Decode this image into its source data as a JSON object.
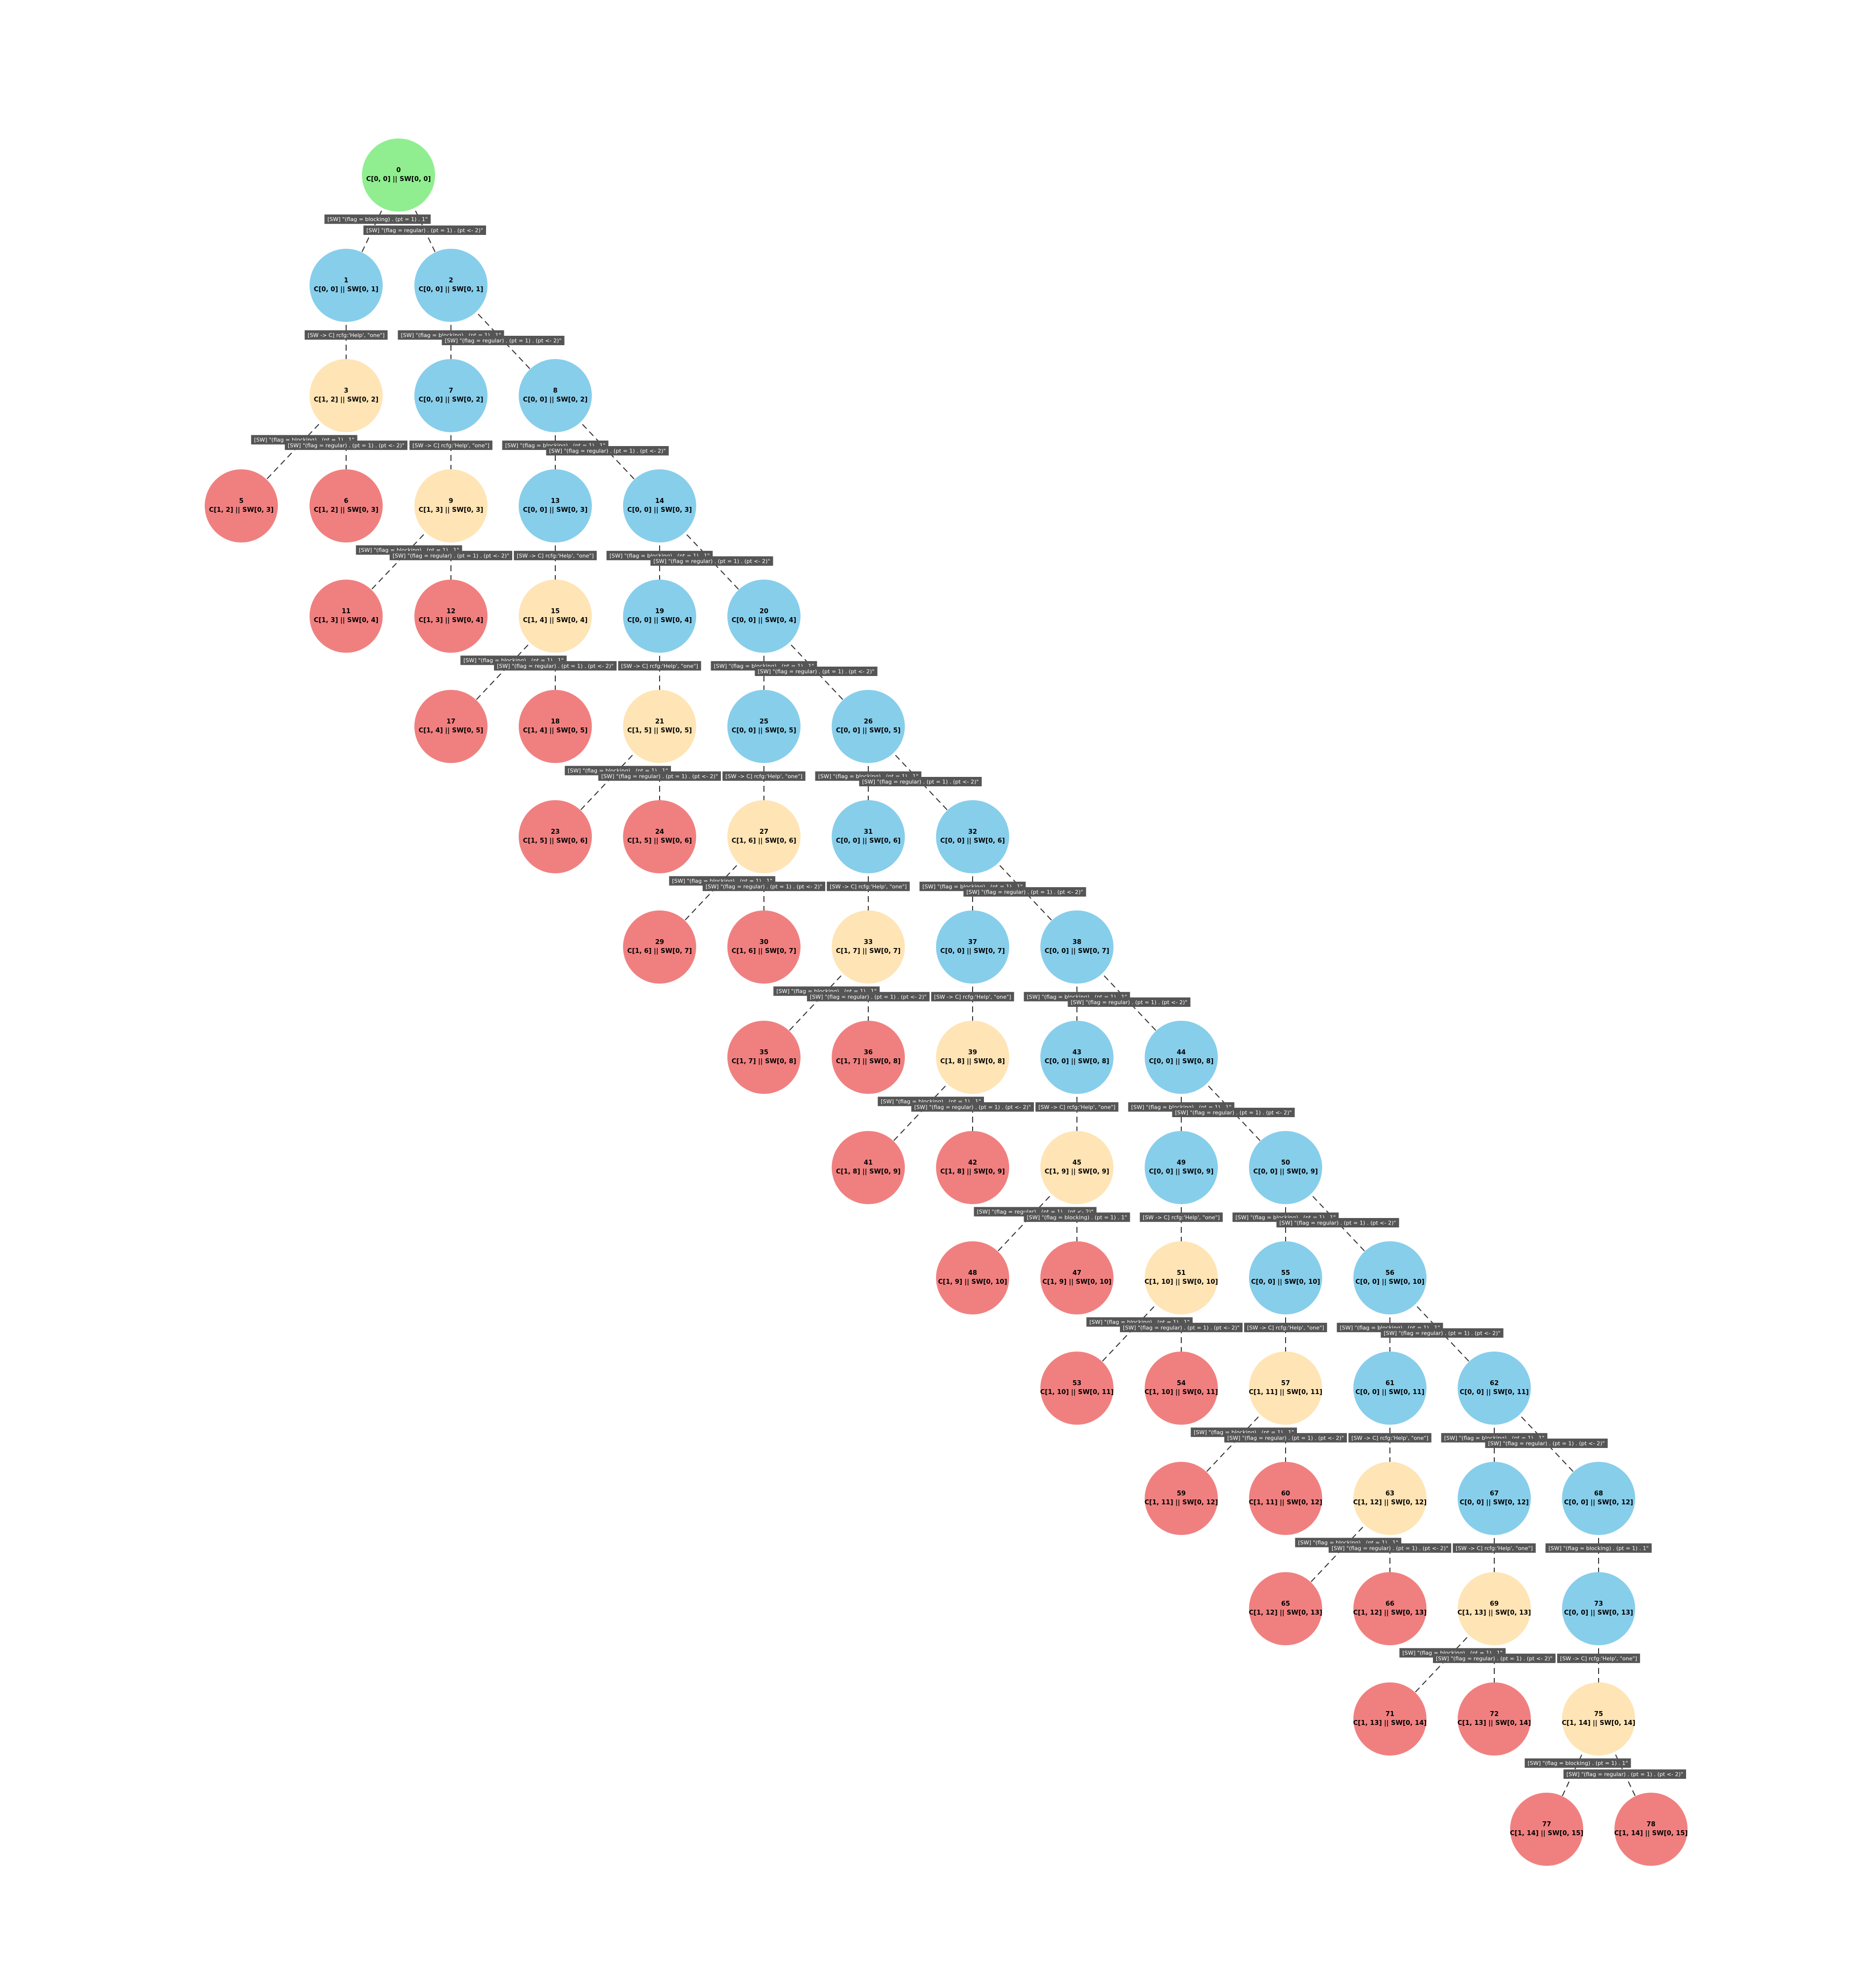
{
  "colors": {
    "root": "#90ee90",
    "blue": "#87ceeb",
    "yellow": "#ffe4b5",
    "red": "#f08080",
    "edge": "#333333",
    "label_bg": "#555555",
    "label_text": "#ffffff"
  },
  "nodes": [
    {
      "id": "0",
      "state": "C[0, 0] || SW[0, 0]",
      "kind": "root"
    },
    {
      "id": "1",
      "state": "C[0, 0] || SW[0, 1]",
      "kind": "blue"
    },
    {
      "id": "2",
      "state": "C[0, 0] || SW[0, 1]",
      "kind": "blue"
    },
    {
      "id": "3",
      "state": "C[1, 2] || SW[0, 2]",
      "kind": "yellow"
    },
    {
      "id": "7",
      "state": "C[0, 0] || SW[0, 2]",
      "kind": "blue"
    },
    {
      "id": "8",
      "state": "C[0, 0] || SW[0, 2]",
      "kind": "blue"
    },
    {
      "id": "5",
      "state": "C[1, 2] || SW[0, 3]",
      "kind": "red"
    },
    {
      "id": "6",
      "state": "C[1, 2] || SW[0, 3]",
      "kind": "red"
    },
    {
      "id": "9",
      "state": "C[1, 3] || SW[0, 3]",
      "kind": "yellow"
    },
    {
      "id": "13",
      "state": "C[0, 0] || SW[0, 3]",
      "kind": "blue"
    },
    {
      "id": "14",
      "state": "C[0, 0] || SW[0, 3]",
      "kind": "blue"
    },
    {
      "id": "11",
      "state": "C[1, 3] || SW[0, 4]",
      "kind": "red"
    },
    {
      "id": "12",
      "state": "C[1, 3] || SW[0, 4]",
      "kind": "red"
    },
    {
      "id": "15",
      "state": "C[1, 4] || SW[0, 4]",
      "kind": "yellow"
    },
    {
      "id": "19",
      "state": "C[0, 0] || SW[0, 4]",
      "kind": "blue"
    },
    {
      "id": "20",
      "state": "C[0, 0] || SW[0, 4]",
      "kind": "blue"
    },
    {
      "id": "17",
      "state": "C[1, 4] || SW[0, 5]",
      "kind": "red"
    },
    {
      "id": "18",
      "state": "C[1, 4] || SW[0, 5]",
      "kind": "red"
    },
    {
      "id": "21",
      "state": "C[1, 5] || SW[0, 5]",
      "kind": "yellow"
    },
    {
      "id": "25",
      "state": "C[0, 0] || SW[0, 5]",
      "kind": "blue"
    },
    {
      "id": "26",
      "state": "C[0, 0] || SW[0, 5]",
      "kind": "blue"
    },
    {
      "id": "23",
      "state": "C[1, 5] || SW[0, 6]",
      "kind": "red"
    },
    {
      "id": "24",
      "state": "C[1, 5] || SW[0, 6]",
      "kind": "red"
    },
    {
      "id": "27",
      "state": "C[1, 6] || SW[0, 6]",
      "kind": "yellow"
    },
    {
      "id": "31",
      "state": "C[0, 0] || SW[0, 6]",
      "kind": "blue"
    },
    {
      "id": "32",
      "state": "C[0, 0] || SW[0, 6]",
      "kind": "blue"
    },
    {
      "id": "29",
      "state": "C[1, 6] || SW[0, 7]",
      "kind": "red"
    },
    {
      "id": "30",
      "state": "C[1, 6] || SW[0, 7]",
      "kind": "red"
    },
    {
      "id": "33",
      "state": "C[1, 7] || SW[0, 7]",
      "kind": "yellow"
    },
    {
      "id": "37",
      "state": "C[0, 0] || SW[0, 7]",
      "kind": "blue"
    },
    {
      "id": "38",
      "state": "C[0, 0] || SW[0, 7]",
      "kind": "blue"
    },
    {
      "id": "35",
      "state": "C[1, 7] || SW[0, 8]",
      "kind": "red"
    },
    {
      "id": "36",
      "state": "C[1, 7] || SW[0, 8]",
      "kind": "red"
    },
    {
      "id": "39",
      "state": "C[1, 8] || SW[0, 8]",
      "kind": "yellow"
    },
    {
      "id": "43",
      "state": "C[0, 0] || SW[0, 8]",
      "kind": "blue"
    },
    {
      "id": "44",
      "state": "C[0, 0] || SW[0, 8]",
      "kind": "blue"
    },
    {
      "id": "41",
      "state": "C[1, 8] || SW[0, 9]",
      "kind": "red"
    },
    {
      "id": "42",
      "state": "C[1, 8] || SW[0, 9]",
      "kind": "red"
    },
    {
      "id": "45",
      "state": "C[1, 9] || SW[0, 9]",
      "kind": "yellow"
    },
    {
      "id": "49",
      "state": "C[0, 0] || SW[0, 9]",
      "kind": "blue"
    },
    {
      "id": "50",
      "state": "C[0, 0] || SW[0, 9]",
      "kind": "blue"
    },
    {
      "id": "48",
      "state": "C[1, 9] || SW[0, 10]",
      "kind": "red"
    },
    {
      "id": "47",
      "state": "C[1, 9] || SW[0, 10]",
      "kind": "red"
    },
    {
      "id": "51",
      "state": "C[1, 10] || SW[0, 10]",
      "kind": "yellow"
    },
    {
      "id": "55",
      "state": "C[0, 0] || SW[0, 10]",
      "kind": "blue"
    },
    {
      "id": "56",
      "state": "C[0, 0] || SW[0, 10]",
      "kind": "blue"
    },
    {
      "id": "53",
      "state": "C[1, 10] || SW[0, 11]",
      "kind": "red"
    },
    {
      "id": "54",
      "state": "C[1, 10] || SW[0, 11]",
      "kind": "red"
    },
    {
      "id": "57",
      "state": "C[1, 11] || SW[0, 11]",
      "kind": "yellow"
    },
    {
      "id": "61",
      "state": "C[0, 0] || SW[0, 11]",
      "kind": "blue"
    },
    {
      "id": "62",
      "state": "C[0, 0] || SW[0, 11]",
      "kind": "blue"
    },
    {
      "id": "59",
      "state": "C[1, 11] || SW[0, 12]",
      "kind": "red"
    },
    {
      "id": "60",
      "state": "C[1, 11] || SW[0, 12]",
      "kind": "red"
    },
    {
      "id": "63",
      "state": "C[1, 12] || SW[0, 12]",
      "kind": "yellow"
    },
    {
      "id": "67",
      "state": "C[0, 0] || SW[0, 12]",
      "kind": "blue"
    },
    {
      "id": "68",
      "state": "C[0, 0] || SW[0, 12]",
      "kind": "blue"
    },
    {
      "id": "65",
      "state": "C[1, 12] || SW[0, 13]",
      "kind": "red"
    },
    {
      "id": "66",
      "state": "C[1, 12] || SW[0, 13]",
      "kind": "red"
    },
    {
      "id": "69",
      "state": "C[1, 13] || SW[0, 13]",
      "kind": "yellow"
    },
    {
      "id": "73",
      "state": "C[0, 0] || SW[0, 13]",
      "kind": "blue"
    },
    {
      "id": "71",
      "state": "C[1, 13] || SW[0, 14]",
      "kind": "red"
    },
    {
      "id": "72",
      "state": "C[1, 13] || SW[0, 14]",
      "kind": "red"
    },
    {
      "id": "75",
      "state": "C[1, 14] || SW[0, 14]",
      "kind": "yellow"
    },
    {
      "id": "77",
      "state": "C[1, 14] || SW[0, 15]",
      "kind": "red"
    },
    {
      "id": "78",
      "state": "C[1, 14] || SW[0, 15]",
      "kind": "red"
    }
  ],
  "edges": [
    {
      "from": "0",
      "to": "1",
      "label": "[SW] \"(flag = blocking) . (pt = 1) . 1\""
    },
    {
      "from": "0",
      "to": "2",
      "label": "[SW] \"(flag = regular) . (pt = 1) . (pt <- 2)\""
    },
    {
      "from": "1",
      "to": "3",
      "label": "[SW -> C] rcfg:'Help', \"one\"]"
    },
    {
      "from": "2",
      "to": "7",
      "label": "[SW] \"(flag = blocking) . (pt = 1) . 1\""
    },
    {
      "from": "2",
      "to": "8",
      "label": "[SW] \"(flag = regular) . (pt = 1) . (pt <- 2)\""
    },
    {
      "from": "3",
      "to": "5",
      "label": "[SW] \"(flag = blocking) . (pt = 1) . 1\""
    },
    {
      "from": "3",
      "to": "6",
      "label": "[SW] \"(flag = regular) . (pt = 1) . (pt <- 2)\""
    },
    {
      "from": "7",
      "to": "9",
      "label": "[SW -> C] rcfg:'Help', \"one\"]"
    },
    {
      "from": "8",
      "to": "13",
      "label": "[SW] \"(flag = blocking) . (pt = 1) . 1\""
    },
    {
      "from": "8",
      "to": "14",
      "label": "[SW] \"(flag = regular) . (pt = 1) . (pt <- 2)\""
    },
    {
      "from": "9",
      "to": "11",
      "label": "[SW] \"(flag = blocking) . (pt = 1) . 1\""
    },
    {
      "from": "9",
      "to": "12",
      "label": "[SW] \"(flag = regular) . (pt = 1) . (pt <- 2)\""
    },
    {
      "from": "13",
      "to": "15",
      "label": "[SW -> C] rcfg:'Help', \"one\"]"
    },
    {
      "from": "14",
      "to": "19",
      "label": "[SW] \"(flag = blocking) . (pt = 1) . 1\""
    },
    {
      "from": "14",
      "to": "20",
      "label": "[SW] \"(flag = regular) . (pt = 1) . (pt <- 2)\""
    },
    {
      "from": "15",
      "to": "17",
      "label": "[SW] \"(flag = blocking) . (pt = 1) . 1\""
    },
    {
      "from": "15",
      "to": "18",
      "label": "[SW] \"(flag = regular) . (pt = 1) . (pt <- 2)\""
    },
    {
      "from": "19",
      "to": "21",
      "label": "[SW -> C] rcfg:'Help', \"one\"]"
    },
    {
      "from": "20",
      "to": "25",
      "label": "[SW] \"(flag = blocking) . (pt = 1) . 1\""
    },
    {
      "from": "20",
      "to": "26",
      "label": "[SW] \"(flag = regular) . (pt = 1) . (pt <- 2)\""
    },
    {
      "from": "21",
      "to": "23",
      "label": "[SW] \"(flag = blocking) . (pt = 1) . 1\""
    },
    {
      "from": "21",
      "to": "24",
      "label": "[SW] \"(flag = regular) . (pt = 1) . (pt <- 2)\""
    },
    {
      "from": "25",
      "to": "27",
      "label": "[SW -> C] rcfg:'Help', \"one\"]"
    },
    {
      "from": "26",
      "to": "31",
      "label": "[SW] \"(flag = blocking) . (pt = 1) . 1\""
    },
    {
      "from": "26",
      "to": "32",
      "label": "[SW] \"(flag = regular) . (pt = 1) . (pt <- 2)\""
    },
    {
      "from": "27",
      "to": "29",
      "label": "[SW] \"(flag = blocking) . (pt = 1) . 1\""
    },
    {
      "from": "27",
      "to": "30",
      "label": "[SW] \"(flag = regular) . (pt = 1) . (pt <- 2)\""
    },
    {
      "from": "31",
      "to": "33",
      "label": "[SW -> C] rcfg:'Help', \"one\"]"
    },
    {
      "from": "32",
      "to": "37",
      "label": "[SW] \"(flag = blocking) . (pt = 1) . 1\""
    },
    {
      "from": "32",
      "to": "38",
      "label": "[SW] \"(flag = regular) . (pt = 1) . (pt <- 2)\""
    },
    {
      "from": "33",
      "to": "35",
      "label": "[SW] \"(flag = blocking) . (pt = 1) . 1\""
    },
    {
      "from": "33",
      "to": "36",
      "label": "[SW] \"(flag = regular) . (pt = 1) . (pt <- 2)\""
    },
    {
      "from": "37",
      "to": "39",
      "label": "[SW -> C] rcfg:'Help', \"one\"]"
    },
    {
      "from": "38",
      "to": "43",
      "label": "[SW] \"(flag = blocking) . (pt = 1) . 1\""
    },
    {
      "from": "38",
      "to": "44",
      "label": "[SW] \"(flag = regular) . (pt = 1) . (pt <- 2)\""
    },
    {
      "from": "39",
      "to": "41",
      "label": "[SW] \"(flag = blocking) . (pt = 1) . 1\""
    },
    {
      "from": "39",
      "to": "42",
      "label": "[SW] \"(flag = regular) . (pt = 1) . (pt <- 2)\""
    },
    {
      "from": "43",
      "to": "45",
      "label": "[SW -> C] rcfg:'Help', \"one\"]"
    },
    {
      "from": "44",
      "to": "49",
      "label": "[SW] \"(flag = blocking) . (pt = 1) . 1\""
    },
    {
      "from": "44",
      "to": "50",
      "label": "[SW] \"(flag = regular) . (pt = 1) . (pt <- 2)\""
    },
    {
      "from": "45",
      "to": "48",
      "label": "[SW] \"(flag = regular) . (pt = 1) . (pt <- 2)\""
    },
    {
      "from": "45",
      "to": "47",
      "label": "[SW] \"(flag = blocking) . (pt = 1) . 1\""
    },
    {
      "from": "49",
      "to": "51",
      "label": "[SW -> C] rcfg:'Help', \"one\"]"
    },
    {
      "from": "50",
      "to": "55",
      "label": "[SW] \"(flag = blocking) . (pt = 1) . 1\""
    },
    {
      "from": "50",
      "to": "56",
      "label": "[SW] \"(flag = regular) . (pt = 1) . (pt <- 2)\""
    },
    {
      "from": "51",
      "to": "53",
      "label": "[SW] \"(flag = blocking) . (pt = 1) . 1\""
    },
    {
      "from": "51",
      "to": "54",
      "label": "[SW] \"(flag = regular) . (pt = 1) . (pt <- 2)\""
    },
    {
      "from": "55",
      "to": "57",
      "label": "[SW -> C] rcfg:'Help', \"one\"]"
    },
    {
      "from": "56",
      "to": "61",
      "label": "[SW] \"(flag = blocking) . (pt = 1) . 1\""
    },
    {
      "from": "56",
      "to": "62",
      "label": "[SW] \"(flag = regular) . (pt = 1) . (pt <- 2)\""
    },
    {
      "from": "57",
      "to": "59",
      "label": "[SW] \"(flag = blocking) . (pt = 1) . 1\""
    },
    {
      "from": "57",
      "to": "60",
      "label": "[SW] \"(flag = regular) . (pt = 1) . (pt <- 2)\""
    },
    {
      "from": "61",
      "to": "63",
      "label": "[SW -> C] rcfg:'Help', \"one\"]"
    },
    {
      "from": "62",
      "to": "67",
      "label": "[SW] \"(flag = blocking) . (pt = 1) . 1\""
    },
    {
      "from": "62",
      "to": "68",
      "label": "[SW] \"(flag = regular) . (pt = 1) . (pt <- 2)\""
    },
    {
      "from": "63",
      "to": "65",
      "label": "[SW] \"(flag = blocking) . (pt = 1) . 1\""
    },
    {
      "from": "63",
      "to": "66",
      "label": "[SW] \"(flag = regular) . (pt = 1) . (pt <- 2)\""
    },
    {
      "from": "67",
      "to": "69",
      "label": "[SW -> C] rcfg:'Help', \"one\"]"
    },
    {
      "from": "68",
      "to": "73",
      "label": "[SW] \"(flag = blocking) . (pt = 1) . 1\""
    },
    {
      "from": "69",
      "to": "71",
      "label": "[SW] \"(flag = blocking) . (pt = 1) . 1\""
    },
    {
      "from": "69",
      "to": "72",
      "label": "[SW] \"(flag = regular) . (pt = 1) . (pt <- 2)\""
    },
    {
      "from": "73",
      "to": "75",
      "label": "[SW -> C] rcfg:'Help', \"one\"]"
    },
    {
      "from": "75",
      "to": "77",
      "label": "[SW] \"(flag = blocking) . (pt = 1) . 1\""
    },
    {
      "from": "75",
      "to": "78",
      "label": "[SW] \"(flag = regular) . (pt = 1) . (pt <- 2)\""
    }
  ]
}
